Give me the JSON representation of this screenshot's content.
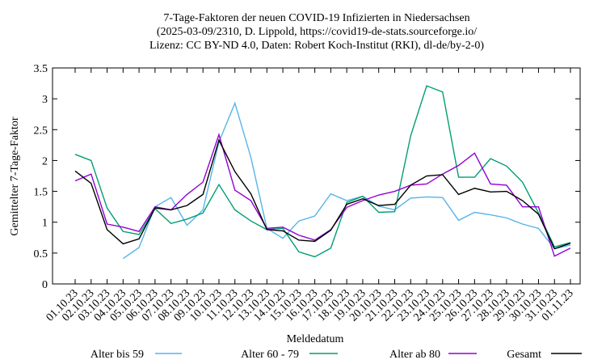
{
  "chart_data": {
    "type": "line",
    "title_lines": [
      "7-Tage-Faktoren der neuen COVID-19 Infizierten in Niedersachsen",
      "(2025-03-09/2310, D. Lippold, https://covid19-de-stats.sourceforge.io/",
      "Lizenz: CC BY-ND 4.0, Daten: Robert Koch-Institut (RKI), dl-de/by-2-0)"
    ],
    "xlabel": "Meldedatum",
    "ylabel": "Gemittelter 7-Tage-Faktor",
    "categories": [
      "01.10.23",
      "02.10.23",
      "03.10.23",
      "04.10.23",
      "05.10.23",
      "06.10.23",
      "07.10.23",
      "08.10.23",
      "09.10.23",
      "10.10.23",
      "11.10.23",
      "12.10.23",
      "13.10.23",
      "14.10.23",
      "15.10.23",
      "16.10.23",
      "17.10.23",
      "18.10.23",
      "19.10.23",
      "20.10.23",
      "21.10.23",
      "22.10.23",
      "23.10.23",
      "24.10.23",
      "25.10.23",
      "26.10.23",
      "27.10.23",
      "28.10.23",
      "29.10.23",
      "30.10.23",
      "31.10.23",
      "01.11.23"
    ],
    "series": [
      {
        "name": "Alter bis 59",
        "color": "#56b4e9",
        "values": [
          null,
          null,
          null,
          0.41,
          0.59,
          1.25,
          1.4,
          0.95,
          1.2,
          2.3,
          2.93,
          2.05,
          0.9,
          0.74,
          1.02,
          1.1,
          1.46,
          1.35,
          1.42,
          1.26,
          1.2,
          1.39,
          1.41,
          1.4,
          1.03,
          1.16,
          1.12,
          1.07,
          0.97,
          0.9,
          0.57,
          0.63
        ]
      },
      {
        "name": "Alter 60 - 79",
        "color": "#009e73",
        "values": [
          2.1,
          2.0,
          1.23,
          0.85,
          0.8,
          1.22,
          0.98,
          1.05,
          1.15,
          1.61,
          1.2,
          1.02,
          0.88,
          0.9,
          0.52,
          0.44,
          0.58,
          1.32,
          1.42,
          1.16,
          1.17,
          2.4,
          3.21,
          3.11,
          1.73,
          1.73,
          2.03,
          1.91,
          1.65,
          1.15,
          0.6,
          0.67
        ]
      },
      {
        "name": "Alter ab 80",
        "color": "#9400d3",
        "values": [
          1.67,
          1.78,
          0.97,
          0.92,
          0.85,
          1.25,
          1.2,
          1.45,
          1.65,
          2.42,
          1.52,
          1.35,
          0.9,
          0.92,
          0.79,
          0.71,
          0.88,
          1.24,
          1.35,
          1.44,
          1.5,
          1.6,
          1.62,
          1.78,
          1.92,
          2.12,
          1.62,
          1.6,
          1.25,
          1.25,
          0.45,
          0.58
        ]
      },
      {
        "name": "Gesamt",
        "color": "#000000",
        "values": [
          1.83,
          1.63,
          0.88,
          0.65,
          0.73,
          1.23,
          1.2,
          1.27,
          1.45,
          2.33,
          1.82,
          1.46,
          0.88,
          0.86,
          0.71,
          0.69,
          0.87,
          1.29,
          1.38,
          1.27,
          1.29,
          1.6,
          1.75,
          1.77,
          1.45,
          1.55,
          1.49,
          1.5,
          1.35,
          1.13,
          0.57,
          0.66
        ]
      }
    ],
    "ylim": [
      0,
      3.5
    ],
    "yticks": [
      0,
      0.5,
      1,
      1.5,
      2,
      2.5,
      3,
      3.5
    ]
  }
}
